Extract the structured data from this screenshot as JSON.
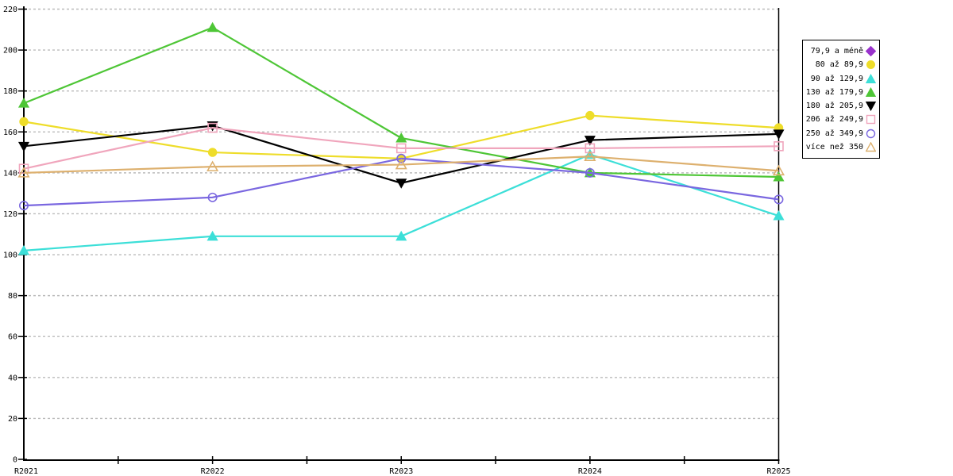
{
  "chart_data": {
    "type": "line",
    "title": "",
    "xlabel": "",
    "ylabel": "",
    "x_categories": [
      "R2021",
      "R2022",
      "R2023",
      "R2024",
      "R2025"
    ],
    "y_ticks": [
      0,
      20,
      40,
      60,
      80,
      100,
      120,
      140,
      160,
      180,
      200,
      220
    ],
    "ylim": [
      0,
      220
    ],
    "grid": "horizontal-dashed",
    "grid_color": "#bbbbbb",
    "axis_color": "#000000",
    "legend_position": "right",
    "series": [
      {
        "name": "79,9 a méně",
        "color": "#9932cc",
        "marker": "diamond",
        "filled": true,
        "values": [
          null,
          null,
          null,
          null,
          null
        ]
      },
      {
        "name": "80 až 89,9",
        "color": "#eedd2a",
        "marker": "circle",
        "filled": true,
        "values": [
          165,
          150,
          147,
          168,
          162
        ]
      },
      {
        "name": "90 až 129,9",
        "color": "#3cdfd8",
        "marker": "triangle-up",
        "filled": true,
        "values": [
          102,
          109,
          109,
          149,
          119
        ]
      },
      {
        "name": "130 až 179,9",
        "color": "#4ec636",
        "marker": "triangle-up",
        "filled": true,
        "values": [
          174,
          211,
          157,
          140,
          138
        ]
      },
      {
        "name": "180 až 205,9",
        "color": "#000000",
        "marker": "triangle-down",
        "filled": true,
        "values": [
          153,
          163,
          135,
          156,
          159
        ]
      },
      {
        "name": "206 až 249,9",
        "color": "#f0a5bc",
        "marker": "square",
        "filled": false,
        "values": [
          142,
          162,
          152,
          152,
          153
        ]
      },
      {
        "name": "250 až 349,9",
        "color": "#7a67e0",
        "marker": "circle",
        "filled": false,
        "values": [
          124,
          128,
          147,
          140,
          127
        ]
      },
      {
        "name": "více než 350",
        "color": "#ddb06e",
        "marker": "triangle-up",
        "filled": false,
        "values": [
          140,
          143,
          144,
          148,
          141
        ]
      }
    ]
  }
}
